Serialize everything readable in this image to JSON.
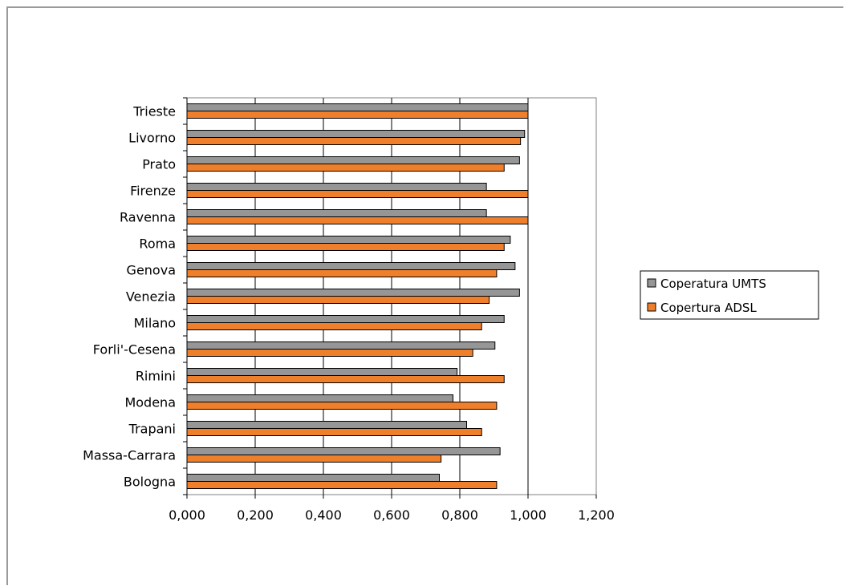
{
  "chart_data": {
    "type": "bar",
    "orientation": "horizontal",
    "categories": [
      "Trieste",
      "Livorno",
      "Prato",
      "Firenze",
      "Ravenna",
      "Roma",
      "Genova",
      "Venezia",
      "Milano",
      "Forli'-Cesena",
      "Rimini",
      "Modena",
      "Trapani",
      "Massa-Carrara",
      "Bologna"
    ],
    "series": [
      {
        "name": "Coperatura UMTS",
        "color": "#969696",
        "values": [
          1.0,
          0.99,
          0.975,
          0.878,
          0.878,
          0.948,
          0.962,
          0.975,
          0.93,
          0.903,
          0.792,
          0.78,
          0.82,
          0.918,
          0.74
        ]
      },
      {
        "name": "Copertura ADSL",
        "color": "#f07f2b",
        "values": [
          1.0,
          0.978,
          0.93,
          1.0,
          1.0,
          0.93,
          0.908,
          0.886,
          0.864,
          0.838,
          0.93,
          0.908,
          0.864,
          0.745,
          0.908
        ]
      }
    ],
    "x_ticks": [
      "0,000",
      "0,200",
      "0,400",
      "0,600",
      "0,800",
      "1,000",
      "1,200"
    ],
    "xlim": [
      0,
      1.2
    ],
    "title": "",
    "xlabel": "",
    "ylabel": "",
    "grid": "vertical",
    "legend_position": "right"
  }
}
